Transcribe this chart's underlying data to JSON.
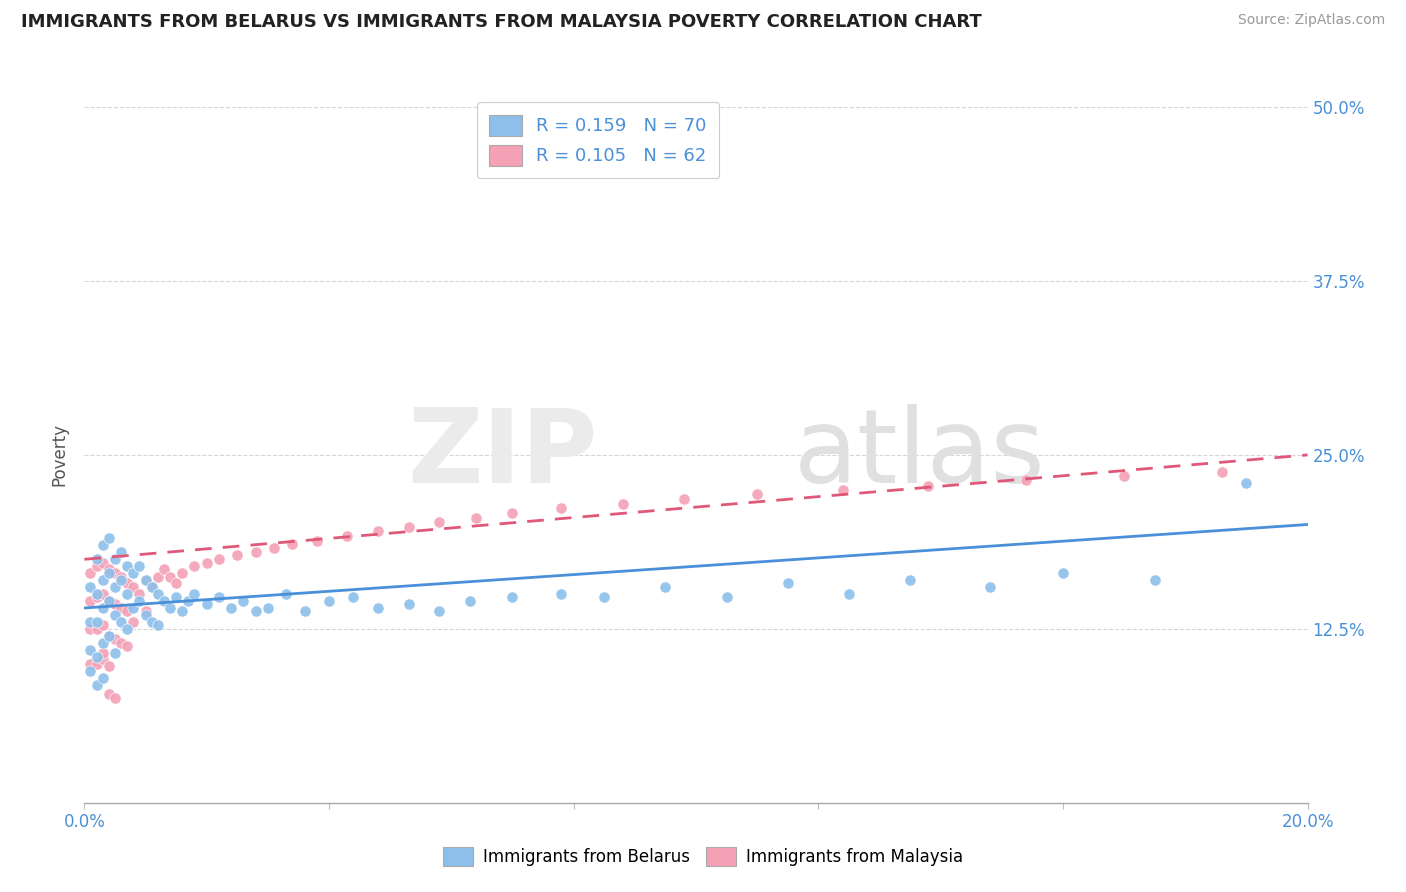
{
  "title": "IMMIGRANTS FROM BELARUS VS IMMIGRANTS FROM MALAYSIA POVERTY CORRELATION CHART",
  "source": "Source: ZipAtlas.com",
  "ylabel": "Poverty",
  "xlim": [
    0.0,
    0.2
  ],
  "ylim": [
    0.0,
    0.5
  ],
  "yticks": [
    0.0,
    0.125,
    0.25,
    0.375,
    0.5
  ],
  "ytick_labels": [
    "",
    "12.5%",
    "25.0%",
    "37.5%",
    "50.0%"
  ],
  "xticks": [
    0.0,
    0.04,
    0.08,
    0.12,
    0.16,
    0.2
  ],
  "xtick_labels": [
    "0.0%",
    "",
    "",
    "",
    "",
    "20.0%"
  ],
  "belarus_R": 0.159,
  "belarus_N": 70,
  "malaysia_R": 0.105,
  "malaysia_N": 62,
  "color_belarus": "#8dbfea",
  "color_malaysia": "#f4a0b5",
  "color_trendline_belarus": "#4a90d9",
  "color_trendline_malaysia": "#e05878",
  "title_color": "#222222",
  "axis_label_color": "#555555",
  "tick_color": "#4a90d9",
  "grid_color": "#cccccc",
  "bel_trend_y0": 0.14,
  "bel_trend_y1": 0.2,
  "mal_trend_y0": 0.175,
  "mal_trend_y1": 0.25,
  "belarus_x": [
    0.001,
    0.001,
    0.001,
    0.001,
    0.002,
    0.002,
    0.002,
    0.002,
    0.002,
    0.003,
    0.003,
    0.003,
    0.003,
    0.003,
    0.004,
    0.004,
    0.004,
    0.004,
    0.005,
    0.005,
    0.005,
    0.005,
    0.006,
    0.006,
    0.006,
    0.007,
    0.007,
    0.007,
    0.008,
    0.008,
    0.009,
    0.009,
    0.01,
    0.01,
    0.011,
    0.011,
    0.012,
    0.012,
    0.013,
    0.014,
    0.015,
    0.016,
    0.017,
    0.018,
    0.02,
    0.022,
    0.024,
    0.026,
    0.028,
    0.03,
    0.033,
    0.036,
    0.04,
    0.044,
    0.048,
    0.053,
    0.058,
    0.063,
    0.07,
    0.078,
    0.085,
    0.095,
    0.105,
    0.115,
    0.125,
    0.135,
    0.148,
    0.16,
    0.175,
    0.19
  ],
  "belarus_y": [
    0.155,
    0.13,
    0.11,
    0.095,
    0.175,
    0.15,
    0.13,
    0.105,
    0.085,
    0.185,
    0.16,
    0.14,
    0.115,
    0.09,
    0.19,
    0.165,
    0.145,
    0.12,
    0.175,
    0.155,
    0.135,
    0.108,
    0.18,
    0.16,
    0.13,
    0.17,
    0.15,
    0.125,
    0.165,
    0.14,
    0.17,
    0.145,
    0.16,
    0.135,
    0.155,
    0.13,
    0.15,
    0.128,
    0.145,
    0.14,
    0.148,
    0.138,
    0.145,
    0.15,
    0.143,
    0.148,
    0.14,
    0.145,
    0.138,
    0.14,
    0.15,
    0.138,
    0.145,
    0.148,
    0.14,
    0.143,
    0.138,
    0.145,
    0.148,
    0.15,
    0.148,
    0.155,
    0.148,
    0.158,
    0.15,
    0.16,
    0.155,
    0.165,
    0.16,
    0.23
  ],
  "malaysia_x": [
    0.001,
    0.001,
    0.001,
    0.001,
    0.002,
    0.002,
    0.002,
    0.002,
    0.003,
    0.003,
    0.003,
    0.003,
    0.004,
    0.004,
    0.004,
    0.005,
    0.005,
    0.005,
    0.006,
    0.006,
    0.006,
    0.007,
    0.007,
    0.007,
    0.008,
    0.008,
    0.009,
    0.01,
    0.01,
    0.011,
    0.012,
    0.013,
    0.014,
    0.015,
    0.016,
    0.018,
    0.02,
    0.022,
    0.025,
    0.028,
    0.031,
    0.034,
    0.038,
    0.043,
    0.048,
    0.053,
    0.058,
    0.064,
    0.07,
    0.078,
    0.088,
    0.098,
    0.11,
    0.124,
    0.138,
    0.154,
    0.17,
    0.186,
    0.003,
    0.004,
    0.004,
    0.005
  ],
  "malaysia_y": [
    0.165,
    0.145,
    0.125,
    0.1,
    0.17,
    0.148,
    0.125,
    0.1,
    0.172,
    0.15,
    0.128,
    0.103,
    0.168,
    0.145,
    0.12,
    0.165,
    0.143,
    0.118,
    0.162,
    0.14,
    0.115,
    0.158,
    0.138,
    0.113,
    0.155,
    0.13,
    0.15,
    0.16,
    0.138,
    0.155,
    0.162,
    0.168,
    0.162,
    0.158,
    0.165,
    0.17,
    0.172,
    0.175,
    0.178,
    0.18,
    0.183,
    0.186,
    0.188,
    0.192,
    0.195,
    0.198,
    0.202,
    0.205,
    0.208,
    0.212,
    0.215,
    0.218,
    0.222,
    0.225,
    0.228,
    0.232,
    0.235,
    0.238,
    0.108,
    0.098,
    0.078,
    0.075
  ]
}
